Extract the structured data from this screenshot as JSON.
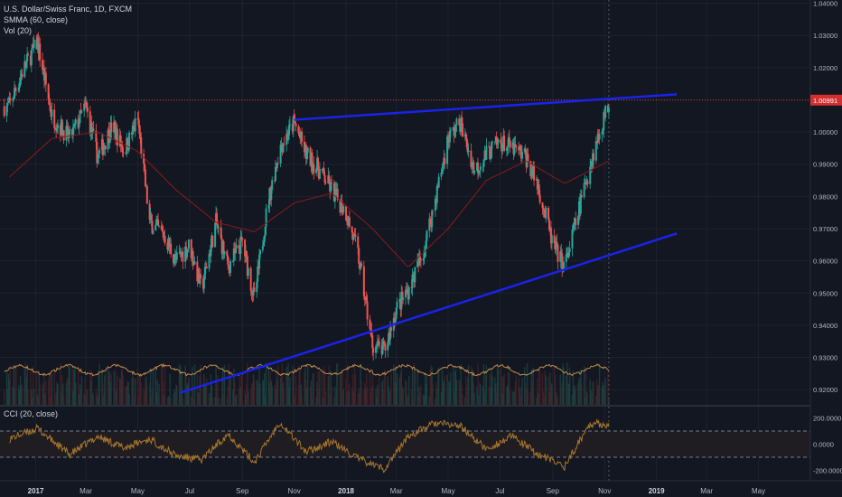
{
  "legend": {
    "symbol": "U.S. Dollar/Swiss Franc, 1D, FXCM",
    "smma": "SMMA (60, close)",
    "vol": "Vol (20)",
    "cci": "CCI (20, close)"
  },
  "colors": {
    "background": "#131722",
    "bull": "#26a69a",
    "bear": "#ef5350",
    "smma": "#8b1a1a",
    "trendline": "#1a23e8",
    "vol_ma": "#c08a4a",
    "cci": "#a8752b",
    "price_label": "#d32f2f"
  },
  "price_axis": {
    "labels": [
      "1.04000",
      "1.03000",
      "1.02000",
      "1.01000",
      "1.00000",
      "0.99000",
      "0.98000",
      "0.97000",
      "0.96000",
      "0.95000",
      "0.94000",
      "0.93000",
      "0.92000"
    ],
    "current_price": "1.00991"
  },
  "cci_axis": {
    "labels": [
      "200.0000",
      "0.0000",
      "-200.0000"
    ]
  },
  "time_axis": {
    "labels": [
      "2017",
      "Mar",
      "May",
      "Jul",
      "Sep",
      "Nov",
      "2018",
      "Mar",
      "May",
      "Jul",
      "Sep",
      "Nov",
      "2019",
      "Mar",
      "May"
    ]
  },
  "chart_data": {
    "type": "candlestick",
    "series_anchors": {
      "description": "approximate daily closing price path, dates as YYYY-MM-DD",
      "dates": [
        "2016-12-01",
        "2016-12-15",
        "2017-01-03",
        "2017-01-20",
        "2017-02-10",
        "2017-03-01",
        "2017-03-15",
        "2017-04-01",
        "2017-04-15",
        "2017-05-01",
        "2017-05-15",
        "2017-06-01",
        "2017-06-15",
        "2017-07-01",
        "2017-07-15",
        "2017-08-01",
        "2017-08-15",
        "2017-09-01",
        "2017-09-15",
        "2017-10-01",
        "2017-10-15",
        "2017-11-01",
        "2017-11-15",
        "2017-12-01",
        "2017-12-15",
        "2018-01-01",
        "2018-01-15",
        "2018-02-01",
        "2018-02-15",
        "2018-03-01",
        "2018-03-15",
        "2018-04-01",
        "2018-04-15",
        "2018-05-01",
        "2018-05-15",
        "2018-06-01",
        "2018-06-15",
        "2018-07-01",
        "2018-07-15",
        "2018-08-01",
        "2018-08-15",
        "2018-09-01",
        "2018-09-15",
        "2018-10-01",
        "2018-10-15",
        "2018-11-01",
        "2018-11-06"
      ],
      "closes": [
        1.008,
        1.018,
        1.028,
        1.005,
        0.998,
        1.008,
        0.992,
        1.002,
        0.994,
        1.004,
        0.972,
        0.968,
        0.96,
        0.965,
        0.951,
        0.972,
        0.958,
        0.966,
        0.948,
        0.978,
        0.995,
        1.003,
        0.993,
        0.988,
        0.982,
        0.975,
        0.962,
        0.934,
        0.932,
        0.945,
        0.951,
        0.962,
        0.978,
        0.998,
        1.003,
        0.988,
        0.993,
        0.997,
        0.995,
        0.992,
        0.983,
        0.965,
        0.958,
        0.975,
        0.99,
        1.005,
        1.009
      ]
    },
    "smma_anchors": {
      "dates": [
        "2016-12-01",
        "2017-01-20",
        "2017-03-15",
        "2017-05-01",
        "2017-06-15",
        "2017-08-01",
        "2017-09-15",
        "2017-11-01",
        "2017-12-15",
        "2018-02-01",
        "2018-03-15",
        "2018-05-01",
        "2018-06-15",
        "2018-08-01",
        "2018-09-15",
        "2018-11-06"
      ],
      "values": [
        0.986,
        0.998,
        1.0,
        0.994,
        0.982,
        0.972,
        0.969,
        0.978,
        0.981,
        0.97,
        0.958,
        0.97,
        0.985,
        0.991,
        0.984,
        0.991
      ]
    },
    "trendlines": [
      {
        "from": {
          "date": "2017-11-01",
          "price": 1.0038
        },
        "to": {
          "date": "2019-01-25",
          "price": 1.0117
        }
      },
      {
        "from": {
          "date": "2017-06-20",
          "price": 0.919
        },
        "to": {
          "date": "2019-01-25",
          "price": 0.9685
        }
      }
    ],
    "horizontal_line": {
      "price": 1.00991
    },
    "cci_anchors": {
      "dates": [
        "2016-12-01",
        "2017-01-03",
        "2017-02-10",
        "2017-03-15",
        "2017-04-15",
        "2017-05-15",
        "2017-06-15",
        "2017-07-15",
        "2017-08-15",
        "2017-09-15",
        "2017-10-15",
        "2017-11-15",
        "2017-12-15",
        "2018-01-15",
        "2018-02-15",
        "2018-03-15",
        "2018-04-15",
        "2018-05-15",
        "2018-06-15",
        "2018-07-15",
        "2018-08-15",
        "2018-09-15",
        "2018-10-15",
        "2018-11-06"
      ],
      "values": [
        40,
        120,
        -80,
        60,
        -30,
        40,
        -90,
        -120,
        80,
        -140,
        170,
        -60,
        20,
        -110,
        -190,
        60,
        160,
        140,
        -40,
        60,
        -80,
        -170,
        160,
        150
      ]
    },
    "y_range": [
      0.915,
      1.041
    ],
    "cci_range": [
      -280,
      280
    ],
    "x_range": [
      "2016-11-20",
      "2019-07-01"
    ]
  }
}
